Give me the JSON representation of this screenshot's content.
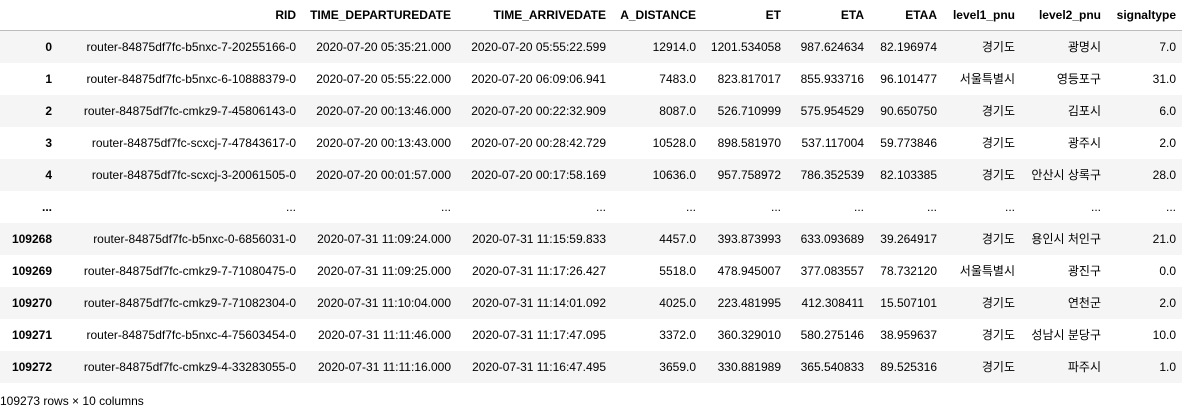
{
  "table": {
    "columns": [
      "",
      "RID",
      "TIME_DEPARTUREDATE",
      "TIME_ARRIVEDATE",
      "A_DISTANCE",
      "ET",
      "ETA",
      "ETAA",
      "level1_pnu",
      "level2_pnu",
      "signaltype"
    ],
    "rows": [
      [
        "0",
        "router-84875df7fc-b5nxc-7-20255166-0",
        "2020-07-20 05:35:21.000",
        "2020-07-20 05:55:22.599",
        "12914.0",
        "1201.534058",
        "987.624634",
        "82.196974",
        "경기도",
        "광명시",
        "7.0"
      ],
      [
        "1",
        "router-84875df7fc-b5nxc-6-10888379-0",
        "2020-07-20 05:55:22.000",
        "2020-07-20 06:09:06.941",
        "7483.0",
        "823.817017",
        "855.933716",
        "96.101477",
        "서울특별시",
        "영등포구",
        "31.0"
      ],
      [
        "2",
        "router-84875df7fc-cmkz9-7-45806143-0",
        "2020-07-20 00:13:46.000",
        "2020-07-20 00:22:32.909",
        "8087.0",
        "526.710999",
        "575.954529",
        "90.650750",
        "경기도",
        "김포시",
        "6.0"
      ],
      [
        "3",
        "router-84875df7fc-scxcj-7-47843617-0",
        "2020-07-20 00:13:43.000",
        "2020-07-20 00:28:42.729",
        "10528.0",
        "898.581970",
        "537.117004",
        "59.773846",
        "경기도",
        "광주시",
        "2.0"
      ],
      [
        "4",
        "router-84875df7fc-scxcj-3-20061505-0",
        "2020-07-20 00:01:57.000",
        "2020-07-20 00:17:58.169",
        "10636.0",
        "957.758972",
        "786.352539",
        "82.103385",
        "경기도",
        "안산시 상록구",
        "28.0"
      ],
      [
        "...",
        "...",
        "...",
        "...",
        "...",
        "...",
        "...",
        "...",
        "...",
        "...",
        "..."
      ],
      [
        "109268",
        "router-84875df7fc-b5nxc-0-6856031-0",
        "2020-07-31 11:09:24.000",
        "2020-07-31 11:15:59.833",
        "4457.0",
        "393.873993",
        "633.093689",
        "39.264917",
        "경기도",
        "용인시 처인구",
        "21.0"
      ],
      [
        "109269",
        "router-84875df7fc-cmkz9-7-71080475-0",
        "2020-07-31 11:09:25.000",
        "2020-07-31 11:17:26.427",
        "5518.0",
        "478.945007",
        "377.083557",
        "78.732120",
        "서울특별시",
        "광진구",
        "0.0"
      ],
      [
        "109270",
        "router-84875df7fc-cmkz9-7-71082304-0",
        "2020-07-31 11:10:04.000",
        "2020-07-31 11:14:01.092",
        "4025.0",
        "223.481995",
        "412.308411",
        "15.507101",
        "경기도",
        "연천군",
        "2.0"
      ],
      [
        "109271",
        "router-84875df7fc-b5nxc-4-75603454-0",
        "2020-07-31 11:11:46.000",
        "2020-07-31 11:17:47.095",
        "3372.0",
        "360.329010",
        "580.275146",
        "38.959637",
        "경기도",
        "성남시 분당구",
        "10.0"
      ],
      [
        "109272",
        "router-84875df7fc-cmkz9-4-33283055-0",
        "2020-07-31 11:11:16.000",
        "2020-07-31 11:16:47.495",
        "3659.0",
        "330.881989",
        "365.540833",
        "89.525316",
        "경기도",
        "파주시",
        "1.0"
      ]
    ]
  },
  "footer": "109273 rows × 10 columns"
}
